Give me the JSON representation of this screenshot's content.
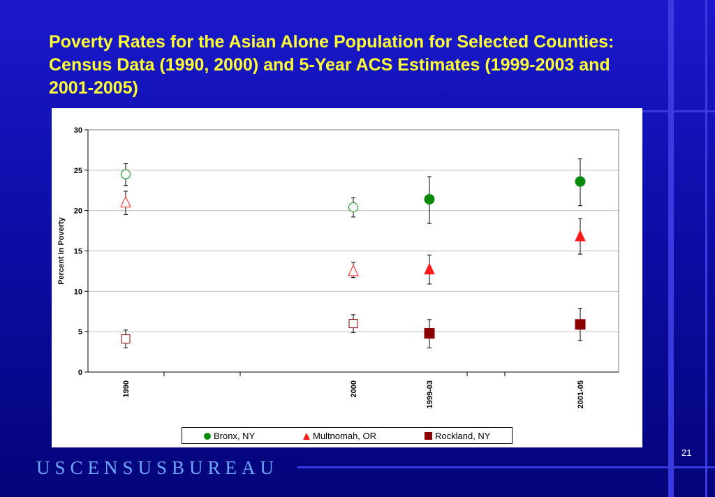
{
  "slide": {
    "title": "Poverty Rates for the Asian Alone Population for Selected Counties:  Census Data (1990, 2000) and 5-Year ACS Estimates (1999-2003 and 2001-2005)",
    "page_number": "21",
    "footer_logo": "USCENSUSBUREAU"
  },
  "colors": {
    "background": "#0d0da8",
    "title": "#ffff33",
    "bronx": "#0a8a0a",
    "multnomah": "#ff1a1a",
    "rockland": "#8b0000",
    "logo": "#6fa8ff"
  },
  "chart_data": {
    "type": "scatter",
    "ylabel": "Percent in Poverty",
    "ylim": [
      0,
      30
    ],
    "yticks": [
      0,
      5,
      10,
      15,
      20,
      25,
      30
    ],
    "grid": true,
    "legend_position": "bottom",
    "categories": [
      "1990",
      "2000",
      "1999-03",
      "2001-05"
    ],
    "series": [
      {
        "name": "Bronx, NY",
        "marker": "circle",
        "color": "#0a8a0a",
        "values": [
          24.5,
          20.4,
          21.4,
          23.6
        ],
        "errors": [
          [
            23.1,
            25.8
          ],
          [
            19.2,
            21.6
          ],
          [
            18.4,
            24.2
          ],
          [
            20.6,
            26.4
          ]
        ],
        "filled": [
          false,
          false,
          true,
          true
        ]
      },
      {
        "name": "Multnomah, OR",
        "marker": "triangle",
        "color": "#ff1a1a",
        "values": [
          21.0,
          12.5,
          12.7,
          16.8
        ],
        "errors": [
          [
            19.5,
            22.4
          ],
          [
            11.7,
            13.6
          ],
          [
            10.9,
            14.5
          ],
          [
            14.6,
            19.0
          ]
        ],
        "filled": [
          false,
          false,
          true,
          true
        ]
      },
      {
        "name": "Rockland, NY",
        "marker": "square",
        "color": "#8b0000",
        "values": [
          4.1,
          6.0,
          4.8,
          5.9
        ],
        "errors": [
          [
            3.0,
            5.2
          ],
          [
            4.9,
            7.1
          ],
          [
            3.0,
            6.5
          ],
          [
            3.9,
            7.9
          ]
        ],
        "filled": [
          false,
          false,
          true,
          true
        ]
      }
    ]
  }
}
